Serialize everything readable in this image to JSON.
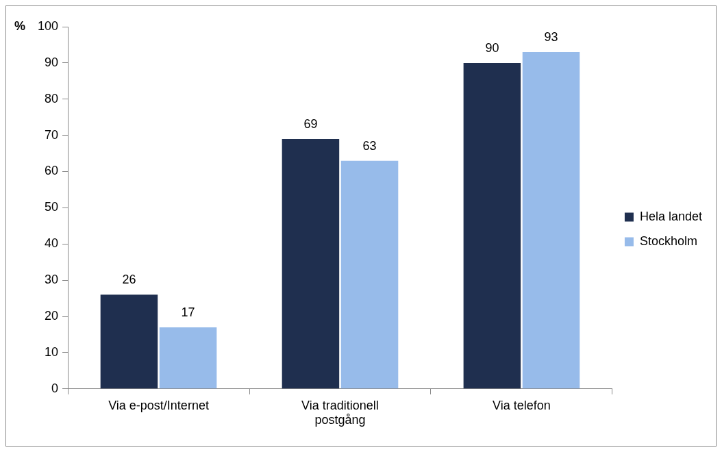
{
  "chart_data": {
    "type": "bar",
    "ylabel": "%",
    "categories": [
      "Via e-post/Internet",
      "Via traditionell postgång",
      "Via telefon"
    ],
    "series": [
      {
        "name": "Hela landet",
        "color": "#1f2f4f",
        "values": [
          26,
          69,
          90
        ]
      },
      {
        "name": "Stockholm",
        "color": "#97bbea",
        "values": [
          17,
          63,
          93
        ]
      }
    ],
    "ylim": [
      0,
      100
    ],
    "yticks": [
      0,
      10,
      20,
      30,
      40,
      50,
      60,
      70,
      80,
      90,
      100
    ],
    "grid": false,
    "legend": "right",
    "data_labels": true
  }
}
